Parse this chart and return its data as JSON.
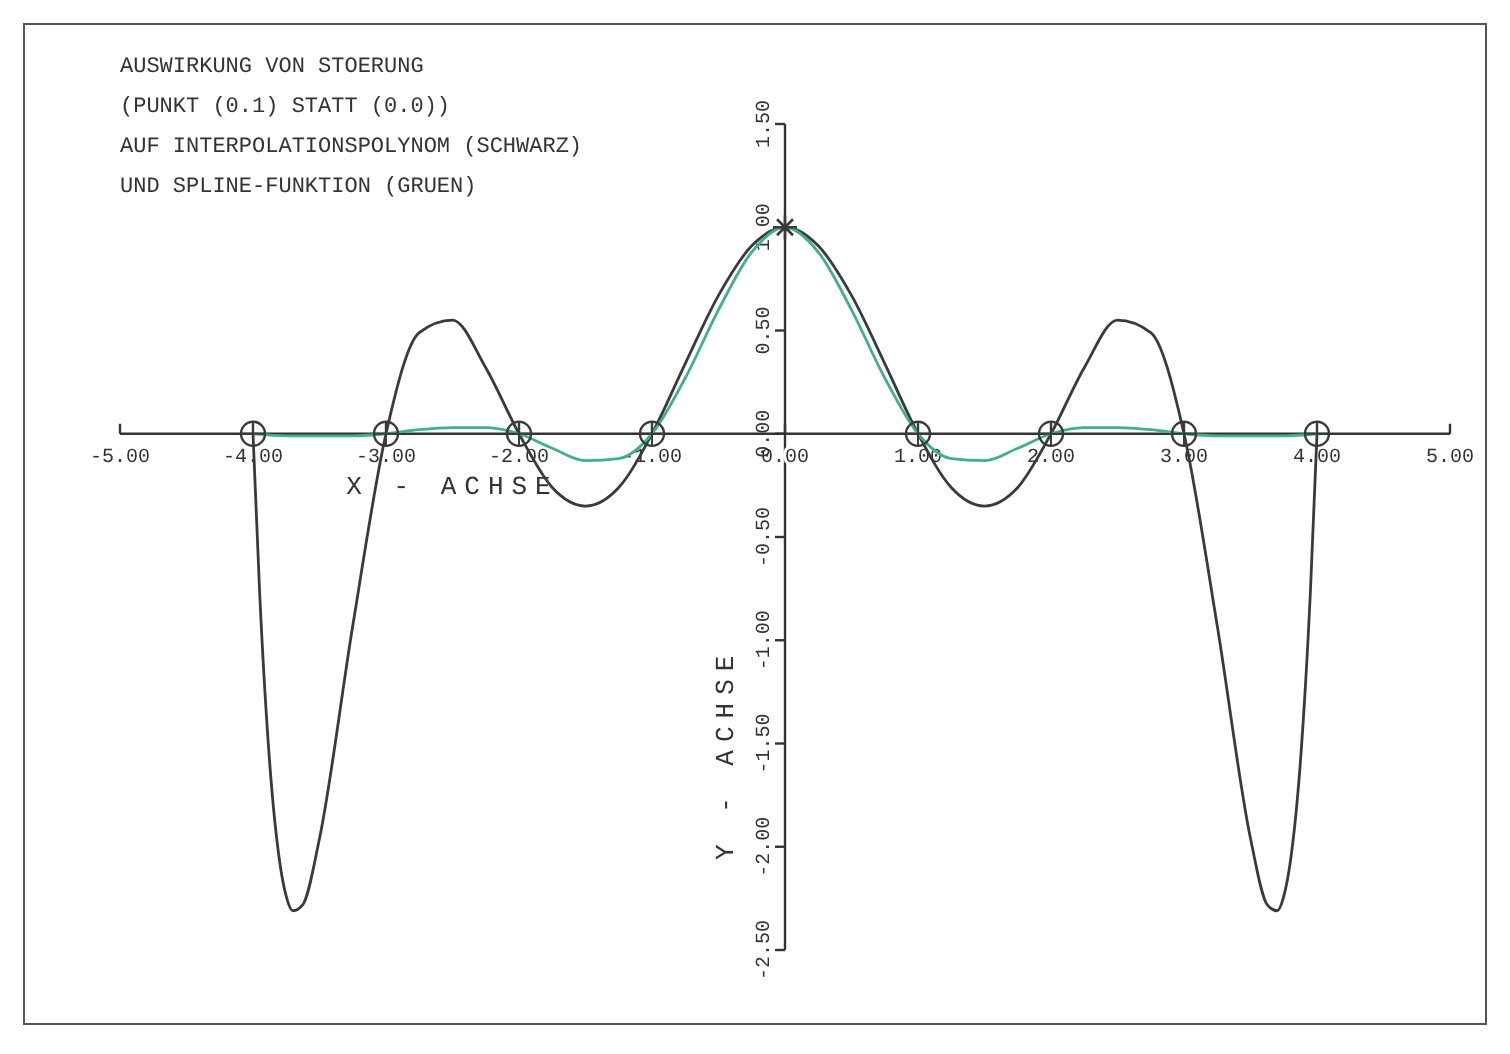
{
  "chart_data": {
    "type": "line",
    "title": "AUSWIRKUNG VON STOERUNG",
    "subtitle": "(PUNKT (0.1) STATT (0.0))\nAUF INTERPOLATIONSPOLYNOM (SCHWARZ)\nUND SPLINE-FUNKTION (GRUEN)",
    "xlabel": "X - ACHSE",
    "ylabel": "Y - ACHSE",
    "xlim": [
      -5,
      5
    ],
    "ylim": [
      -2.5,
      1.5
    ],
    "xticks": [
      {
        "value": -5,
        "label": "-5.00"
      },
      {
        "value": -4,
        "label": "-4.00"
      },
      {
        "value": -3,
        "label": "-3.00"
      },
      {
        "value": -2,
        "label": "-2.00"
      },
      {
        "value": -1,
        "label": "-1.00"
      },
      {
        "value": 0,
        "label": "0.00"
      },
      {
        "value": 1,
        "label": "1.00"
      },
      {
        "value": 2,
        "label": "2.00"
      },
      {
        "value": 3,
        "label": "3.00"
      },
      {
        "value": 4,
        "label": "4.00"
      },
      {
        "value": 5,
        "label": "5.00"
      }
    ],
    "yticks": [
      {
        "value": -2.5,
        "label": "-2.50"
      },
      {
        "value": -2,
        "label": "-2.00"
      },
      {
        "value": -1.5,
        "label": "-1.50"
      },
      {
        "value": -1,
        "label": "-1.00"
      },
      {
        "value": -0.5,
        "label": "-0.50"
      },
      {
        "value": 0,
        "label": "0.00"
      },
      {
        "value": 0.5,
        "label": "0.50"
      },
      {
        "value": 1,
        "label": "1.00"
      },
      {
        "value": 1.5,
        "label": "1.50"
      }
    ],
    "grid": false,
    "series": [
      {
        "color": "#3a3a3a",
        "marker": "none",
        "x": [
          -4,
          -3.95,
          -3.875,
          -3.8,
          -3.75,
          -3.7,
          -3.625,
          -3.5,
          -3.25,
          -3,
          -2.75,
          -2.5,
          -2.25,
          -2,
          -1.75,
          -1.5,
          -1.25,
          -1,
          -0.75,
          -0.5,
          -0.25,
          0,
          0.25,
          0.5,
          0.75,
          1,
          1.25,
          1.5,
          1.75,
          2,
          2.25,
          2.5,
          2.75,
          3,
          3.25,
          3.5,
          3.625,
          3.7,
          3.75,
          3.8,
          3.875,
          3.95,
          4
        ],
        "values": [
          0,
          -0.77,
          -1.59,
          -2.07,
          -2.24,
          -2.31,
          -2.28,
          -1.96,
          -0.93,
          0,
          0.49,
          0.55,
          0.32,
          0,
          -0.26,
          -0.35,
          -0.26,
          0,
          0.34,
          0.67,
          0.91,
          1,
          0.91,
          0.67,
          0.34,
          0,
          -0.26,
          -0.35,
          -0.26,
          0,
          0.32,
          0.55,
          0.49,
          0,
          -0.93,
          -1.96,
          -2.28,
          -2.31,
          -2.24,
          -2.07,
          -1.59,
          -0.77,
          0
        ]
      },
      {
        "color": "#3fae91",
        "marker": "none",
        "x": [
          -4,
          -3.75,
          -3.5,
          -3.25,
          -3,
          -2.75,
          -2.5,
          -2.25,
          -2,
          -1.75,
          -1.5,
          -1.25,
          -1,
          -0.75,
          -0.5,
          -0.25,
          0,
          0.25,
          0.5,
          0.75,
          1,
          1.25,
          1.5,
          1.75,
          2,
          2.25,
          2.5,
          2.75,
          3,
          3.25,
          3.5,
          3.75,
          4
        ],
        "values": [
          0,
          -0.01,
          -0.01,
          -0.01,
          0,
          0.02,
          0.03,
          0.03,
          0,
          -0.07,
          -0.13,
          -0.12,
          0,
          0.27,
          0.6,
          0.88,
          1,
          0.88,
          0.6,
          0.27,
          0,
          -0.12,
          -0.13,
          -0.07,
          0,
          0.03,
          0.03,
          0.02,
          0,
          -0.01,
          -0.01,
          -0.01,
          0
        ]
      },
      {
        "type": "scatter",
        "color": "#3a3a3a",
        "marker": "circle",
        "x": [
          -4,
          -3,
          -2,
          -1,
          1,
          2,
          3,
          4
        ],
        "values": [
          0,
          0,
          0,
          0,
          0,
          0,
          0,
          0
        ]
      },
      {
        "type": "scatter",
        "color": "#3a3a3a",
        "marker": "cross",
        "x": [
          0
        ],
        "values": [
          1
        ]
      }
    ]
  }
}
